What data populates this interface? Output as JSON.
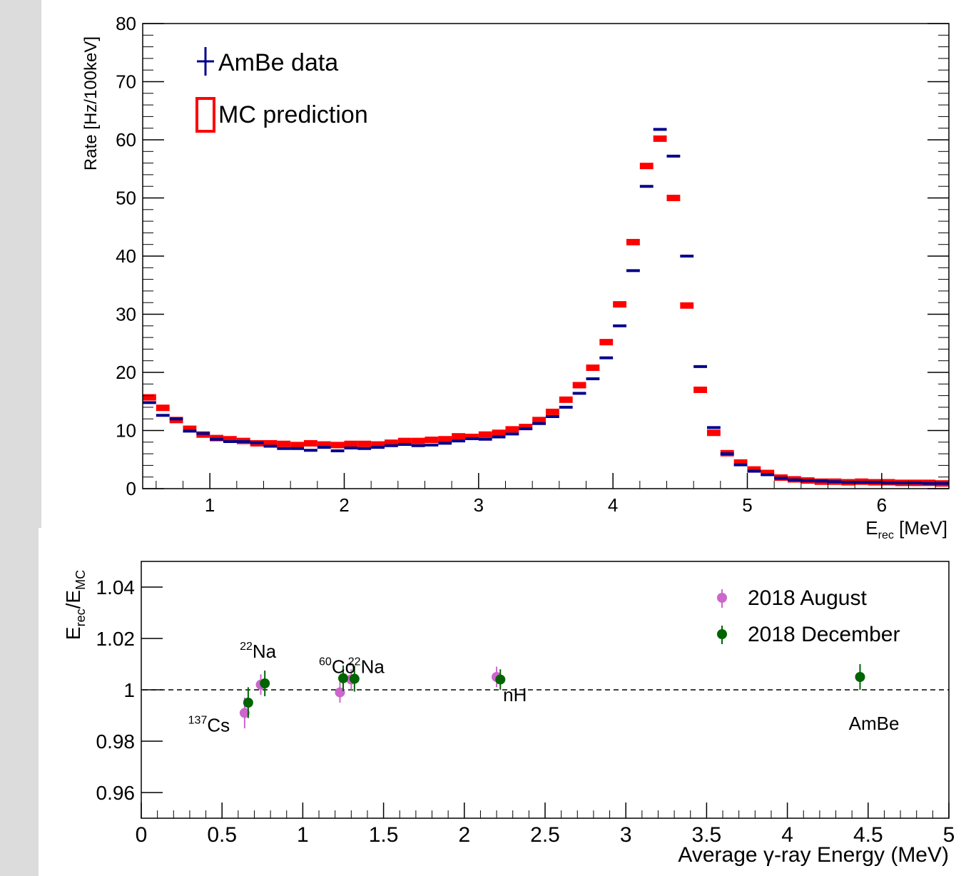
{
  "chart_data": [
    {
      "type": "scatter",
      "subtype": "histogram-comparison",
      "title": "",
      "xlabel": "E",
      "xlabel_sub": "rec",
      "xlabel_unit": " [MeV]",
      "ylabel": "Rate [Hz/100keV]",
      "xlim": [
        0.5,
        6.5
      ],
      "ylim": [
        0,
        80
      ],
      "xticks": [
        1,
        2,
        3,
        4,
        5,
        6
      ],
      "yticks": [
        0,
        10,
        20,
        30,
        40,
        50,
        60,
        70,
        80
      ],
      "legend_position": "top-left",
      "grid": false,
      "series": [
        {
          "name": "AmBe data",
          "color": "#00008b",
          "style": "crosses",
          "x": [
            0.55,
            0.65,
            0.75,
            0.85,
            0.95,
            1.05,
            1.15,
            1.25,
            1.35,
            1.45,
            1.55,
            1.65,
            1.75,
            1.85,
            1.95,
            2.05,
            2.15,
            2.25,
            2.35,
            2.45,
            2.55,
            2.65,
            2.75,
            2.85,
            2.95,
            3.05,
            3.15,
            3.25,
            3.35,
            3.45,
            3.55,
            3.65,
            3.75,
            3.85,
            3.95,
            4.05,
            4.15,
            4.25,
            4.35,
            4.45,
            4.55,
            4.65,
            4.75,
            4.85,
            4.95,
            5.05,
            5.15,
            5.25,
            5.35,
            5.45,
            5.55,
            5.65,
            5.75,
            5.85,
            5.95,
            6.05,
            6.15,
            6.25,
            6.35,
            6.45
          ],
          "y": [
            14.8,
            12.6,
            12.0,
            9.9,
            9.5,
            8.5,
            8.1,
            8.1,
            7.9,
            7.3,
            6.9,
            6.9,
            6.6,
            7.1,
            6.5,
            7.0,
            6.9,
            7.1,
            7.4,
            7.6,
            7.4,
            7.5,
            7.8,
            8.2,
            8.6,
            8.5,
            8.9,
            9.4,
            10.3,
            11.2,
            12.4,
            14.0,
            16.4,
            18.9,
            22.5,
            28.0,
            37.5,
            52.0,
            61.8,
            57.2,
            40.0,
            21.0,
            10.5,
            6.0,
            4.1,
            3.0,
            2.4,
            1.8,
            1.5,
            1.4,
            1.3,
            1.2,
            1.1,
            1.1,
            1.1,
            1.0,
            1.0,
            1.0,
            0.9,
            0.9
          ]
        },
        {
          "name": "MC prediction",
          "color": "#ff0000",
          "style": "boxes",
          "x": [
            0.55,
            0.65,
            0.75,
            0.85,
            0.95,
            1.05,
            1.15,
            1.25,
            1.35,
            1.45,
            1.55,
            1.65,
            1.75,
            1.85,
            1.95,
            2.05,
            2.15,
            2.25,
            2.35,
            2.45,
            2.55,
            2.65,
            2.75,
            2.85,
            2.95,
            3.05,
            3.15,
            3.25,
            3.35,
            3.45,
            3.55,
            3.65,
            3.75,
            3.85,
            3.95,
            4.05,
            4.15,
            4.25,
            4.35,
            4.45,
            4.55,
            4.65,
            4.75,
            4.85,
            4.95,
            5.05,
            5.15,
            5.25,
            5.35,
            5.45,
            5.55,
            5.65,
            5.75,
            5.85,
            5.95,
            6.05,
            6.15,
            6.25,
            6.35,
            6.45
          ],
          "y": [
            15.7,
            13.9,
            11.8,
            10.3,
            9.3,
            8.7,
            8.5,
            8.2,
            7.8,
            7.8,
            7.7,
            7.5,
            7.8,
            7.6,
            7.5,
            7.7,
            7.7,
            7.6,
            7.9,
            8.2,
            8.2,
            8.4,
            8.5,
            9.0,
            8.9,
            9.3,
            9.6,
            10.2,
            10.6,
            11.8,
            13.2,
            15.3,
            17.8,
            20.8,
            25.2,
            31.7,
            42.4,
            55.5,
            60.2,
            50.0,
            31.5,
            17.0,
            9.6,
            6.1,
            4.5,
            3.3,
            2.7,
            1.9,
            1.6,
            1.4,
            1.2,
            1.2,
            1.1,
            1.2,
            1.1,
            1.1,
            1.0,
            1.0,
            1.0,
            0.9
          ]
        }
      ]
    },
    {
      "type": "scatter",
      "title": "",
      "xlabel": "Average γ-ray Energy (MeV)",
      "ylabel_main": "E",
      "ylabel_sub1": "rec",
      "ylabel_slash": "/E",
      "ylabel_sub2": "MC",
      "xlim": [
        0,
        5
      ],
      "ylim": [
        0.95,
        1.05
      ],
      "xticks": [
        0,
        0.5,
        1,
        1.5,
        2,
        2.5,
        3,
        3.5,
        4,
        4.5,
        5
      ],
      "xtick_labels": [
        "0",
        "0.5",
        "1",
        "1.5",
        "2",
        "2.5",
        "3",
        "3.5",
        "4",
        "4.5",
        "5"
      ],
      "yticks": [
        0.96,
        0.98,
        1,
        1.02,
        1.04
      ],
      "ytick_labels": [
        "0.96",
        "0.98",
        "1",
        "1.02",
        "1.04"
      ],
      "reference_line": 1,
      "legend_position": "top-right",
      "grid": false,
      "series": [
        {
          "name": "2018 August",
          "color": "#cc66cc",
          "points": [
            {
              "x": 0.64,
              "y": 0.991,
              "err": 0.006
            },
            {
              "x": 0.74,
              "y": 1.002,
              "err": 0.004
            },
            {
              "x": 1.23,
              "y": 0.999,
              "err": 0.004
            },
            {
              "x": 1.3,
              "y": 1.004,
              "err": 0.004
            },
            {
              "x": 2.2,
              "y": 1.005,
              "err": 0.004
            }
          ]
        },
        {
          "name": "2018 December",
          "color": "#006400",
          "points": [
            {
              "x": 0.662,
              "y": 0.995,
              "err": 0.006
            },
            {
              "x": 0.765,
              "y": 1.0025,
              "err": 0.005
            },
            {
              "x": 1.25,
              "y": 1.0045,
              "err": 0.005
            },
            {
              "x": 1.32,
              "y": 1.0043,
              "err": 0.005
            },
            {
              "x": 2.223,
              "y": 1.004,
              "err": 0.004
            },
            {
              "x": 4.45,
              "y": 1.005,
              "err": 0.005
            }
          ]
        }
      ],
      "annotations": [
        {
          "sup": "137",
          "text": "Cs",
          "x": 0.29,
          "y": 0.9837
        },
        {
          "sup": "22",
          "text": "Na",
          "x": 0.61,
          "y": 1.0125
        },
        {
          "sup": "60",
          "text": "Co",
          "x": 1.1,
          "y": 1.0065
        },
        {
          "sup": "22",
          "text": "Na",
          "x": 1.28,
          "y": 1.0065
        },
        {
          "sup": "",
          "text": "nH",
          "x": 2.24,
          "y": 0.9955
        },
        {
          "sup": "",
          "text": "AmBe",
          "x": 4.38,
          "y": 0.9845
        }
      ]
    }
  ]
}
